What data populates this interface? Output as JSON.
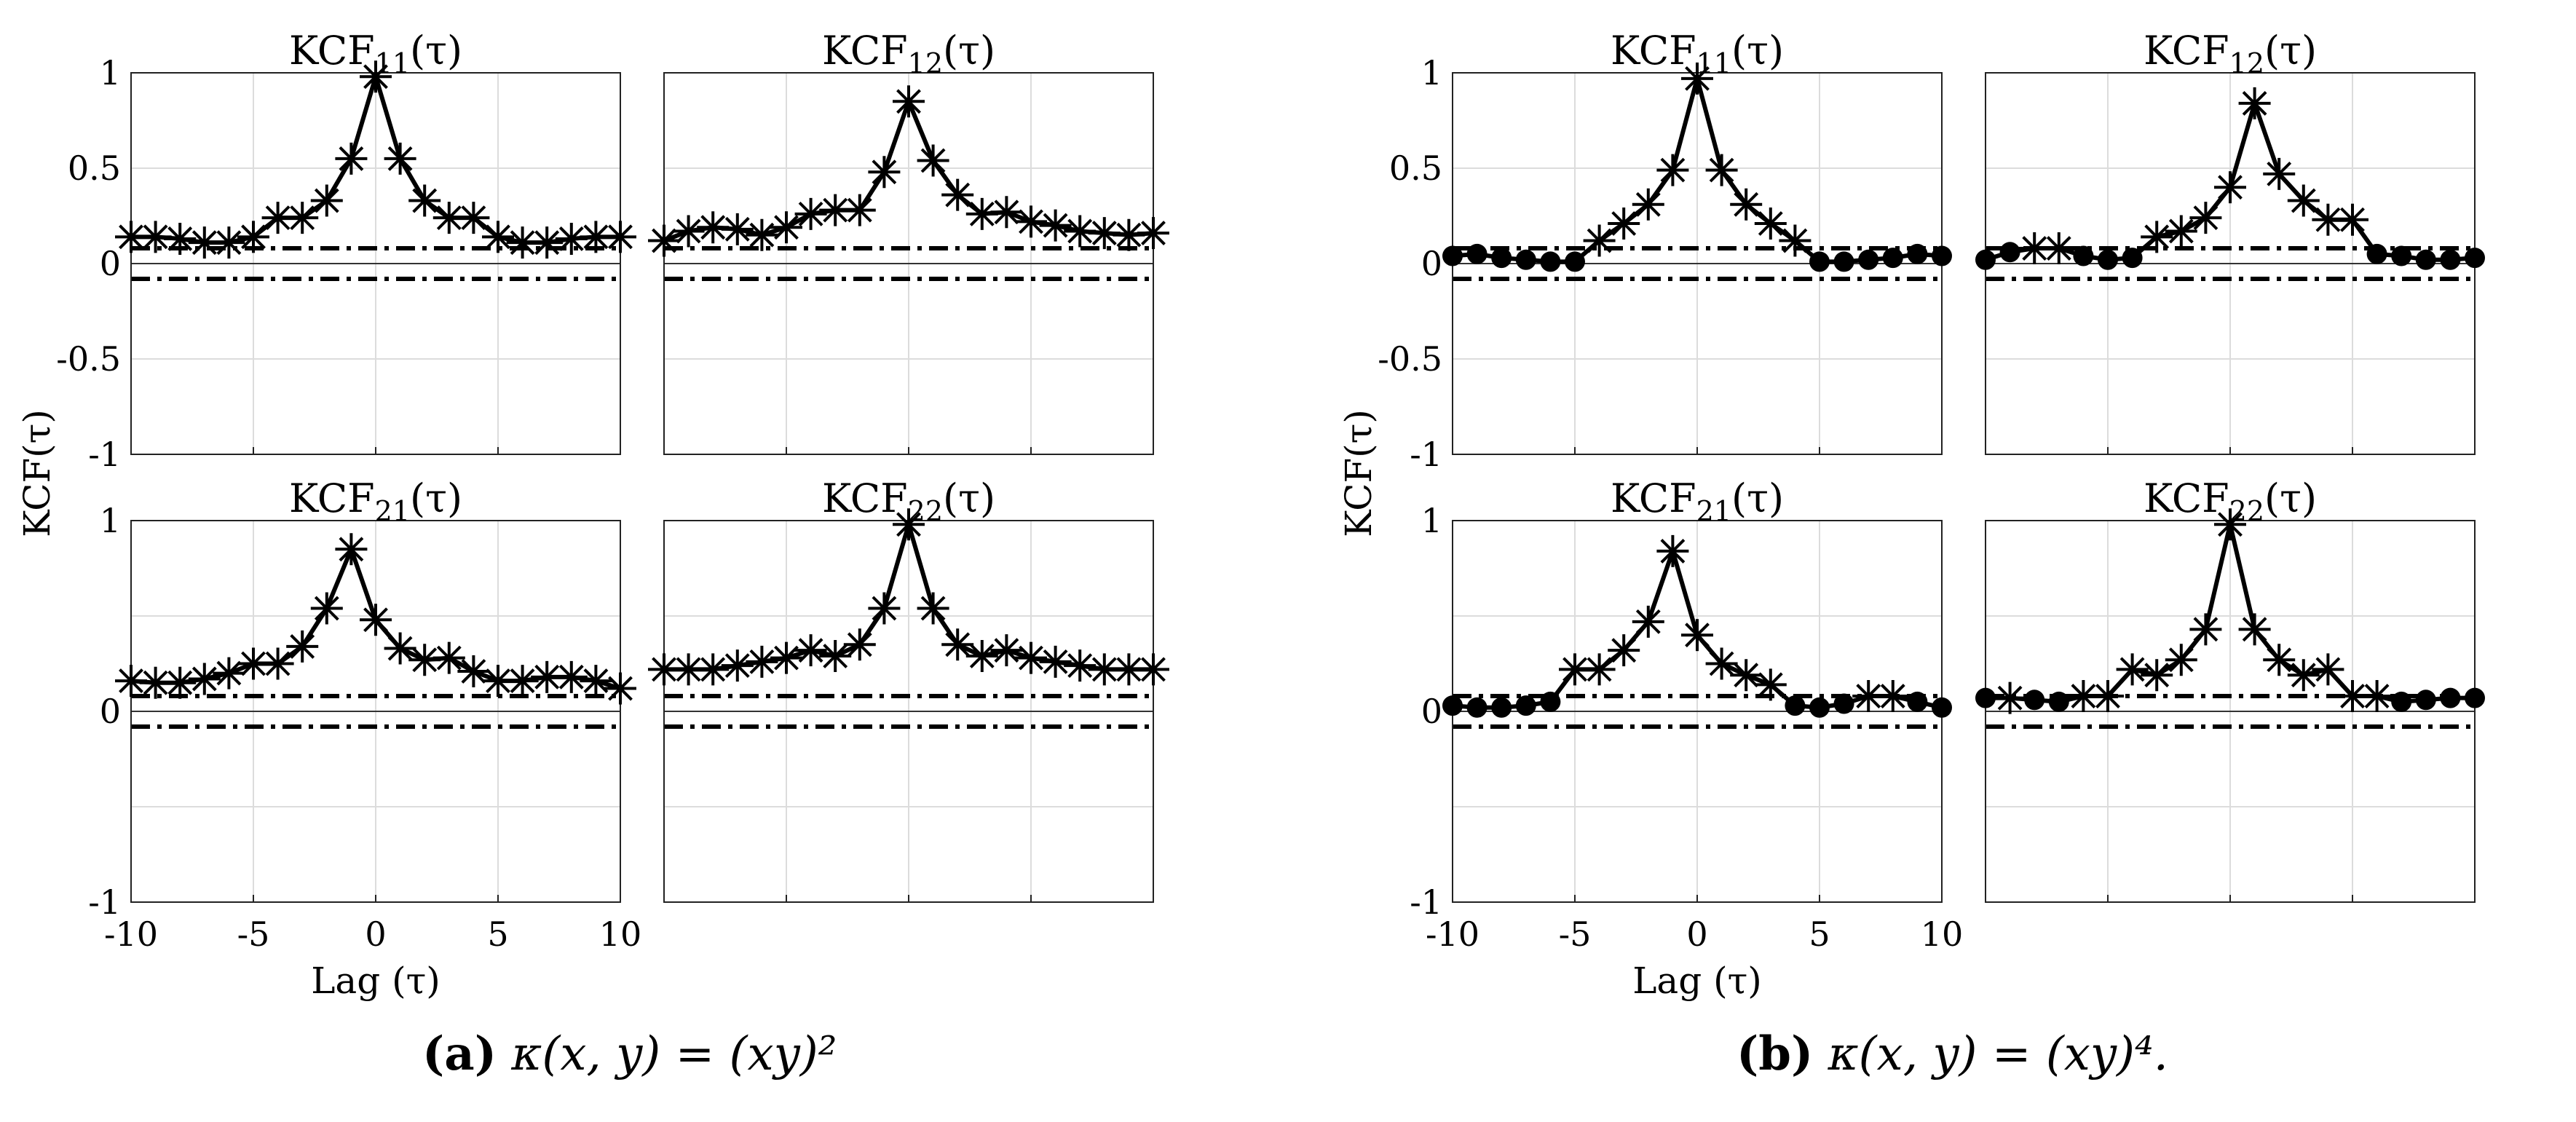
{
  "chart_data": [
    {
      "panel": "a",
      "type": "line",
      "caption": {
        "label": "(a)",
        "equation": "κ(x, y) = (xy)²"
      },
      "xlabel": "Lag (τ)",
      "ylabel": "KCF(τ)",
      "xlim": [
        -10,
        10
      ],
      "xticks": [
        "-10",
        "-5",
        "0",
        "5",
        "10"
      ],
      "grid": true,
      "confidence_band": [
        0.08,
        -0.08
      ],
      "subplots": [
        {
          "title": "KCF11(τ)",
          "ylim": [
            -1,
            1
          ],
          "yticks": [
            "1",
            "0.5",
            "0",
            "-0.5",
            "-1"
          ],
          "x": [
            -10,
            -9,
            -8,
            -7,
            -6,
            -5,
            -4,
            -3,
            -2,
            -1,
            0,
            1,
            2,
            3,
            4,
            5,
            6,
            7,
            8,
            9,
            10
          ],
          "y": [
            0.14,
            0.14,
            0.13,
            0.11,
            0.11,
            0.14,
            0.24,
            0.24,
            0.33,
            0.55,
            0.98,
            0.55,
            0.33,
            0.24,
            0.24,
            0.14,
            0.11,
            0.11,
            0.13,
            0.14,
            0.14
          ],
          "markers": [
            "star",
            "star",
            "star",
            "star",
            "star",
            "star",
            "star",
            "star",
            "star",
            "star",
            "star",
            "star",
            "star",
            "star",
            "star",
            "star",
            "star",
            "star",
            "star",
            "star",
            "star"
          ]
        },
        {
          "title": "KCF12(τ)",
          "ylim": [
            -1,
            1
          ],
          "yticks": [],
          "x": [
            -10,
            -9,
            -8,
            -7,
            -6,
            -5,
            -4,
            -3,
            -2,
            -1,
            0,
            1,
            2,
            3,
            4,
            5,
            6,
            7,
            8,
            9,
            10
          ],
          "y": [
            0.12,
            0.17,
            0.19,
            0.18,
            0.15,
            0.19,
            0.26,
            0.28,
            0.28,
            0.48,
            0.85,
            0.54,
            0.36,
            0.26,
            0.27,
            0.22,
            0.2,
            0.17,
            0.16,
            0.15,
            0.16
          ],
          "markers": [
            "star",
            "star",
            "star",
            "star",
            "star",
            "star",
            "star",
            "star",
            "star",
            "star",
            "star",
            "star",
            "star",
            "star",
            "star",
            "star",
            "star",
            "star",
            "star",
            "star",
            "star"
          ]
        },
        {
          "title": "KCF21(τ)",
          "ylim": [
            -1,
            1
          ],
          "yticks": [
            "1",
            "0",
            "-1"
          ],
          "x": [
            -10,
            -9,
            -8,
            -7,
            -6,
            -5,
            -4,
            -3,
            -2,
            -1,
            0,
            1,
            2,
            3,
            4,
            5,
            6,
            7,
            8,
            9,
            10
          ],
          "y": [
            0.16,
            0.15,
            0.15,
            0.17,
            0.2,
            0.25,
            0.25,
            0.34,
            0.54,
            0.85,
            0.48,
            0.33,
            0.27,
            0.28,
            0.21,
            0.16,
            0.16,
            0.18,
            0.18,
            0.16,
            0.12
          ],
          "markers": [
            "star",
            "star",
            "star",
            "star",
            "star",
            "star",
            "star",
            "star",
            "star",
            "star",
            "star",
            "star",
            "star",
            "star",
            "star",
            "star",
            "star",
            "star",
            "star",
            "star",
            "star"
          ]
        },
        {
          "title": "KCF22(τ)",
          "ylim": [
            -1,
            1
          ],
          "yticks": [],
          "x": [
            -10,
            -9,
            -8,
            -7,
            -6,
            -5,
            -4,
            -3,
            -2,
            -1,
            0,
            1,
            2,
            3,
            4,
            5,
            6,
            7,
            8,
            9,
            10
          ],
          "y": [
            0.22,
            0.22,
            0.22,
            0.24,
            0.26,
            0.28,
            0.32,
            0.29,
            0.35,
            0.54,
            0.98,
            0.54,
            0.35,
            0.29,
            0.32,
            0.28,
            0.26,
            0.24,
            0.22,
            0.22,
            0.22
          ],
          "markers": [
            "star",
            "star",
            "star",
            "star",
            "star",
            "star",
            "star",
            "star",
            "star",
            "star",
            "star",
            "star",
            "star",
            "star",
            "star",
            "star",
            "star",
            "star",
            "star",
            "star",
            "star"
          ]
        }
      ]
    },
    {
      "panel": "b",
      "type": "line",
      "caption": {
        "label": "(b)",
        "equation": "κ(x, y) = (xy)⁴."
      },
      "xlabel": "Lag (τ)",
      "ylabel": "KCF(τ)",
      "xlim": [
        -10,
        10
      ],
      "xticks": [
        "-10",
        "-5",
        "0",
        "5",
        "10"
      ],
      "grid": true,
      "confidence_band": [
        0.08,
        -0.08
      ],
      "subplots": [
        {
          "title": "KCF11(τ)",
          "ylim": [
            -1,
            1
          ],
          "yticks": [
            "1",
            "0.5",
            "0",
            "-0.5",
            "-1"
          ],
          "x": [
            -10,
            -9,
            -8,
            -7,
            -6,
            -5,
            -4,
            -3,
            -2,
            -1,
            0,
            1,
            2,
            3,
            4,
            5,
            6,
            7,
            8,
            9,
            10
          ],
          "y": [
            0.04,
            0.05,
            0.03,
            0.02,
            0.01,
            0.01,
            0.12,
            0.21,
            0.31,
            0.49,
            0.97,
            0.49,
            0.31,
            0.21,
            0.12,
            0.01,
            0.01,
            0.02,
            0.03,
            0.05,
            0.04
          ],
          "markers": [
            "dot",
            "dot",
            "dot",
            "dot",
            "dot",
            "dot",
            "star",
            "star",
            "star",
            "star",
            "star",
            "star",
            "star",
            "star",
            "star",
            "dot",
            "dot",
            "dot",
            "dot",
            "dot",
            "dot"
          ]
        },
        {
          "title": "KCF12(τ)",
          "ylim": [
            -1,
            1
          ],
          "yticks": [],
          "x": [
            -10,
            -9,
            -8,
            -7,
            -6,
            -5,
            -4,
            -3,
            -2,
            -1,
            0,
            1,
            2,
            3,
            4,
            5,
            6,
            7,
            8,
            9,
            10
          ],
          "y": [
            0.02,
            0.06,
            0.08,
            0.08,
            0.04,
            0.02,
            0.03,
            0.14,
            0.17,
            0.24,
            0.4,
            0.84,
            0.47,
            0.33,
            0.23,
            0.23,
            0.05,
            0.04,
            0.02,
            0.02,
            0.03
          ],
          "markers": [
            "dot",
            "dot",
            "star",
            "star",
            "dot",
            "dot",
            "dot",
            "star",
            "star",
            "star",
            "star",
            "star",
            "star",
            "star",
            "star",
            "star",
            "dot",
            "dot",
            "dot",
            "dot",
            "dot"
          ]
        },
        {
          "title": "KCF21(τ)",
          "ylim": [
            -1,
            1
          ],
          "yticks": [
            "1",
            "0",
            "-1"
          ],
          "x": [
            -10,
            -9,
            -8,
            -7,
            -6,
            -5,
            -4,
            -3,
            -2,
            -1,
            0,
            1,
            2,
            3,
            4,
            5,
            6,
            7,
            8,
            9,
            10
          ],
          "y": [
            0.03,
            0.02,
            0.02,
            0.03,
            0.05,
            0.22,
            0.22,
            0.32,
            0.47,
            0.84,
            0.4,
            0.25,
            0.19,
            0.14,
            0.03,
            0.02,
            0.04,
            0.08,
            0.08,
            0.05,
            0.02
          ],
          "markers": [
            "dot",
            "dot",
            "dot",
            "dot",
            "dot",
            "star",
            "star",
            "star",
            "star",
            "star",
            "star",
            "star",
            "star",
            "star",
            "dot",
            "dot",
            "dot",
            "star",
            "star",
            "dot",
            "dot"
          ]
        },
        {
          "title": "KCF22(τ)",
          "ylim": [
            -1,
            1
          ],
          "yticks": [],
          "x": [
            -10,
            -9,
            -8,
            -7,
            -6,
            -5,
            -4,
            -3,
            -2,
            -1,
            0,
            1,
            2,
            3,
            4,
            5,
            6,
            7,
            8,
            9,
            10
          ],
          "y": [
            0.07,
            0.07,
            0.06,
            0.05,
            0.08,
            0.08,
            0.22,
            0.19,
            0.27,
            0.43,
            0.98,
            0.43,
            0.27,
            0.19,
            0.22,
            0.08,
            0.08,
            0.05,
            0.06,
            0.07,
            0.07
          ],
          "markers": [
            "dot",
            "star",
            "dot",
            "dot",
            "star",
            "star",
            "star",
            "star",
            "star",
            "star",
            "star",
            "star",
            "star",
            "star",
            "star",
            "star",
            "star",
            "dot",
            "dot",
            "dot",
            "dot"
          ]
        }
      ]
    }
  ]
}
